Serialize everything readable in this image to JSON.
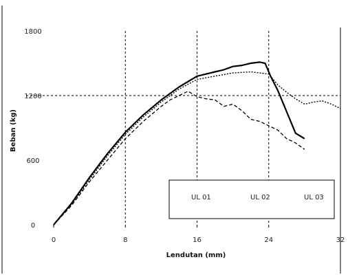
{
  "chart_data": {
    "type": "line",
    "xlabel": "Lendutan (mm)",
    "ylabel": "Beban (kg)",
    "xlim": [
      0,
      32
    ],
    "ylim": [
      0,
      1800
    ],
    "x_ticks": [
      0,
      8,
      16,
      24,
      32
    ],
    "y_ticks": [
      0,
      600,
      1200,
      1800
    ],
    "grid": "dotted lines at x = 8, 16, 24 and y = 1200",
    "legend_position": "bottom-right",
    "colors": {
      "line": "#000000",
      "grid": "#000000",
      "background": "#ffffff"
    },
    "series": [
      {
        "name": "UL 01",
        "style": "dashed",
        "points": [
          [
            0,
            0
          ],
          [
            2,
            180
          ],
          [
            4,
            400
          ],
          [
            6,
            600
          ],
          [
            8,
            800
          ],
          [
            10,
            960
          ],
          [
            12,
            1100
          ],
          [
            13,
            1160
          ],
          [
            14,
            1200
          ],
          [
            15,
            1240
          ],
          [
            16,
            1190
          ],
          [
            17,
            1170
          ],
          [
            18,
            1160
          ],
          [
            19,
            1100
          ],
          [
            20,
            1120
          ],
          [
            21,
            1060
          ],
          [
            22,
            980
          ],
          [
            23,
            960
          ],
          [
            24,
            920
          ],
          [
            25,
            880
          ],
          [
            26,
            800
          ],
          [
            27,
            760
          ],
          [
            28,
            700
          ]
        ]
      },
      {
        "name": "UL 02",
        "style": "solid",
        "points": [
          [
            0,
            0
          ],
          [
            2,
            200
          ],
          [
            4,
            440
          ],
          [
            6,
            660
          ],
          [
            8,
            860
          ],
          [
            10,
            1020
          ],
          [
            12,
            1160
          ],
          [
            14,
            1280
          ],
          [
            16,
            1380
          ],
          [
            17,
            1400
          ],
          [
            18,
            1420
          ],
          [
            19,
            1440
          ],
          [
            20,
            1470
          ],
          [
            21,
            1480
          ],
          [
            22,
            1500
          ],
          [
            23,
            1510
          ],
          [
            23.6,
            1500
          ],
          [
            24.2,
            1380
          ],
          [
            25,
            1250
          ],
          [
            26,
            1050
          ],
          [
            27,
            850
          ],
          [
            28,
            800
          ]
        ]
      },
      {
        "name": "UL 03",
        "style": "dotted",
        "points": [
          [
            0,
            0
          ],
          [
            2,
            190
          ],
          [
            4,
            420
          ],
          [
            6,
            640
          ],
          [
            8,
            840
          ],
          [
            10,
            1000
          ],
          [
            12,
            1140
          ],
          [
            14,
            1260
          ],
          [
            16,
            1350
          ],
          [
            18,
            1380
          ],
          [
            20,
            1410
          ],
          [
            22,
            1420
          ],
          [
            24,
            1400
          ],
          [
            25,
            1300
          ],
          [
            26,
            1230
          ],
          [
            27,
            1170
          ],
          [
            28,
            1120
          ],
          [
            29,
            1140
          ],
          [
            30,
            1150
          ],
          [
            31,
            1120
          ],
          [
            32,
            1080
          ]
        ]
      }
    ]
  }
}
